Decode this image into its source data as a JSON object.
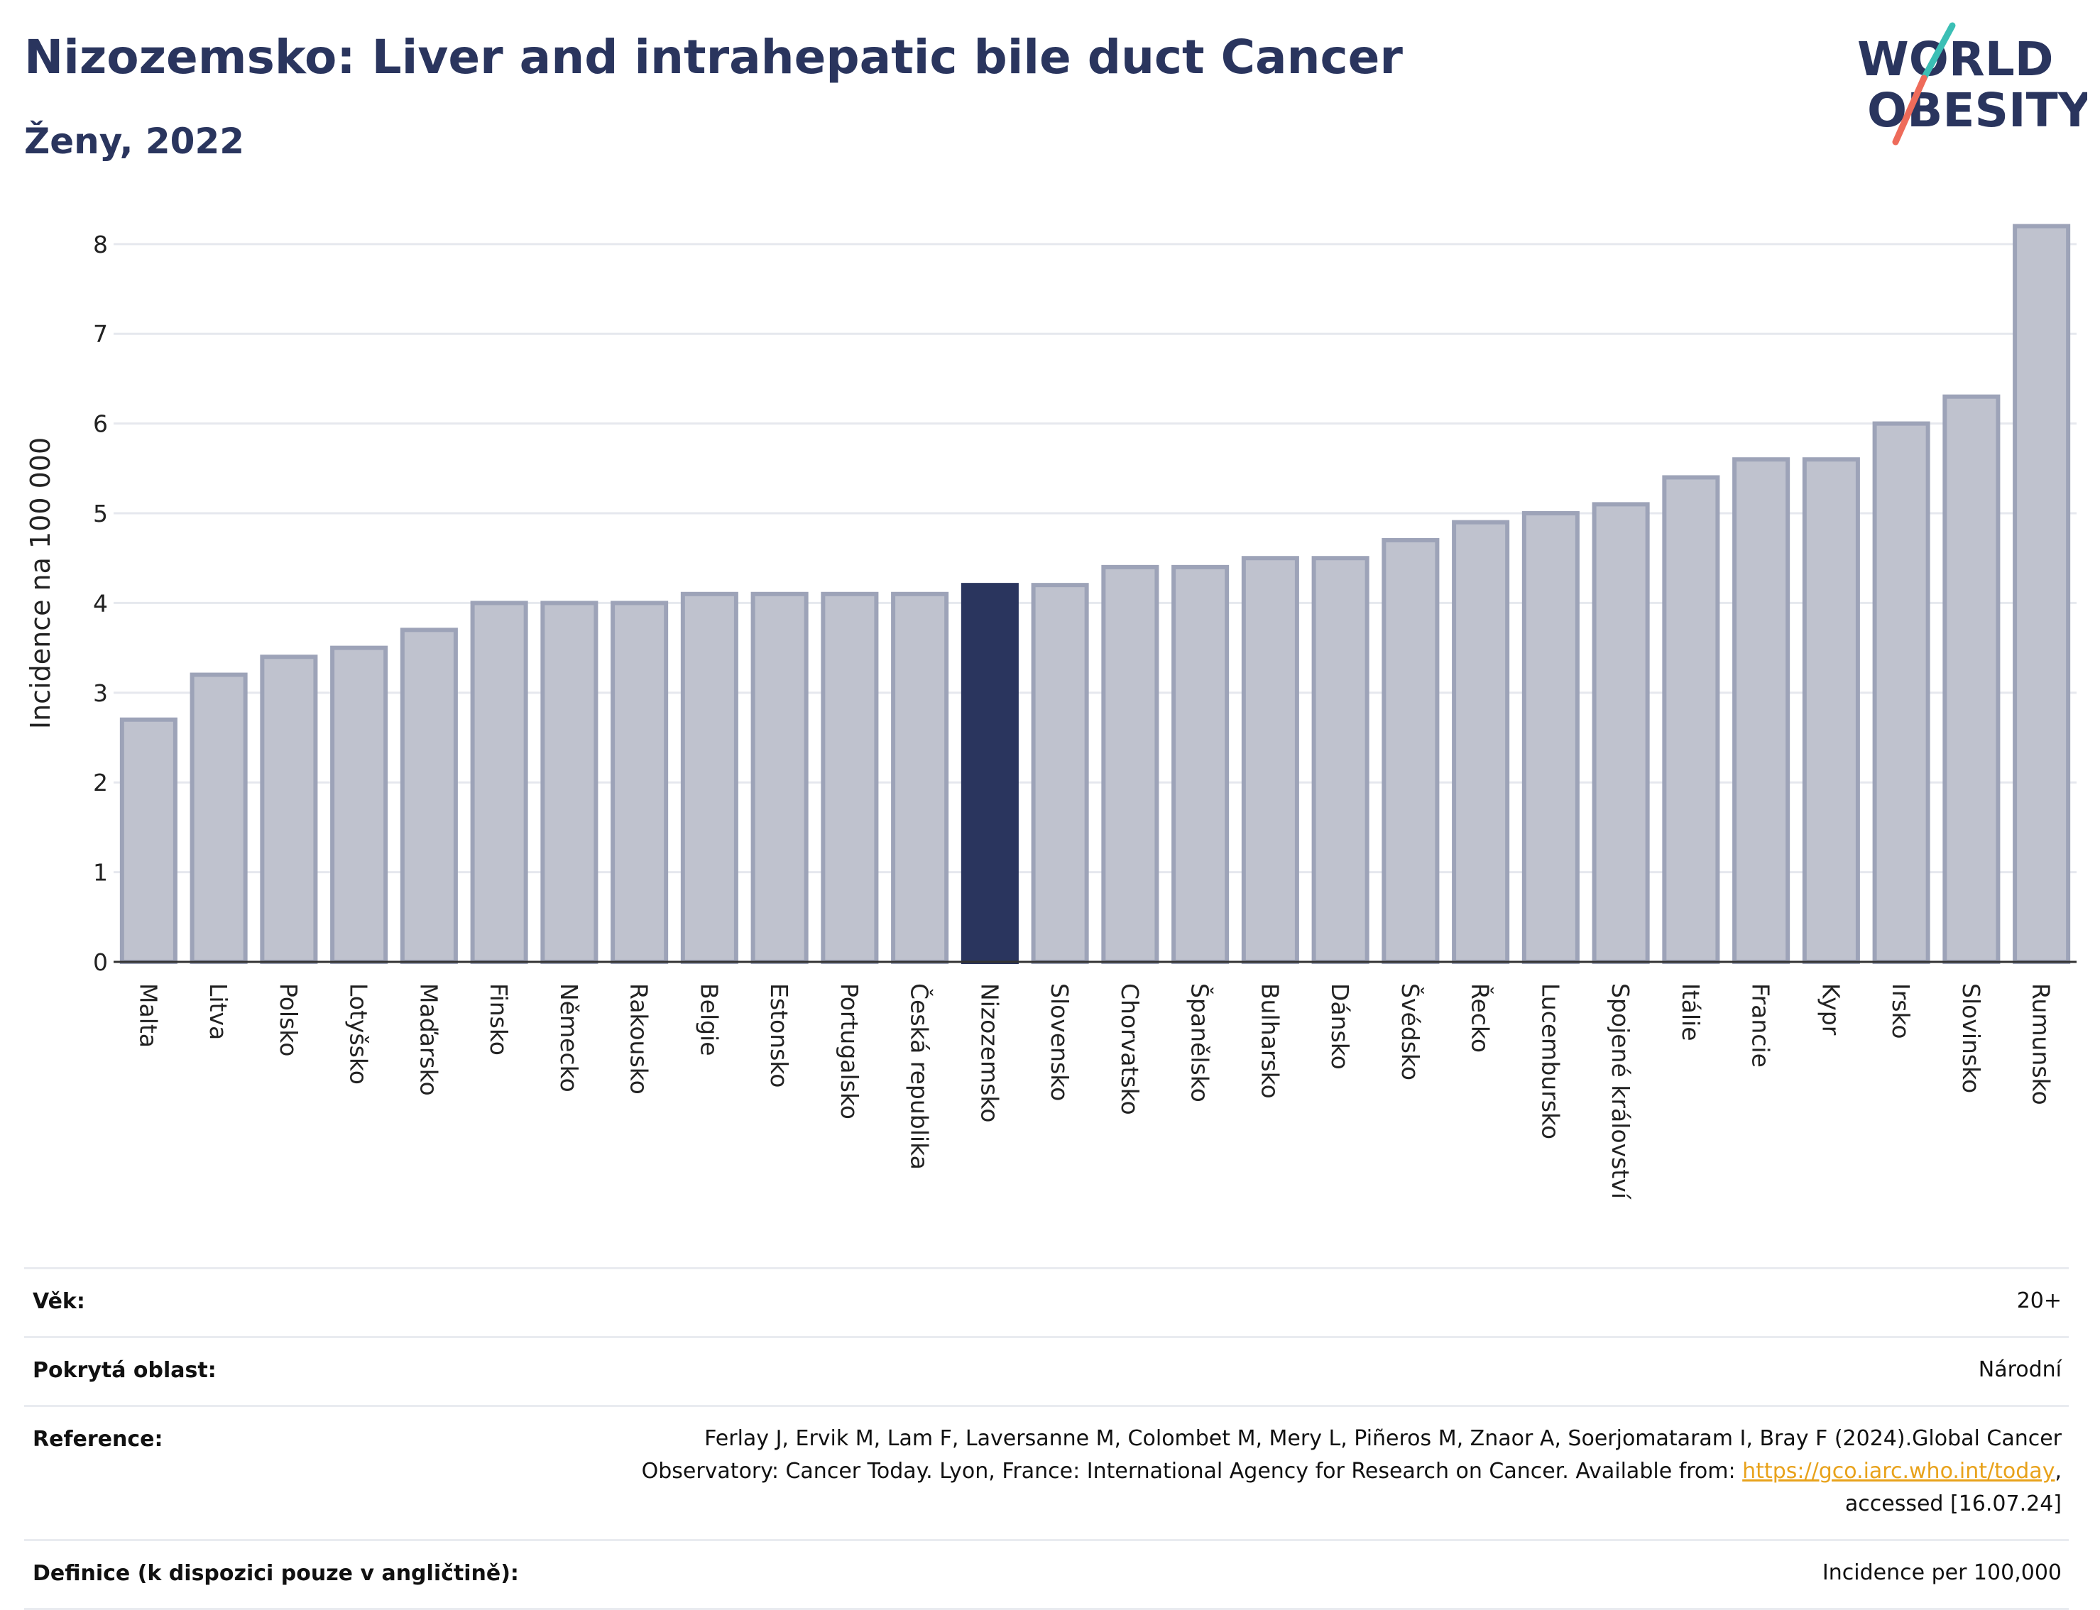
{
  "header": {
    "title": "Nizozemsko: Liver and intrahepatic bile duct Cancer",
    "subtitle": "Ženy, 2022"
  },
  "logo": {
    "line1": "WORLD",
    "line2": "OBESITY"
  },
  "colors": {
    "highlight": "#2a355e",
    "bar_fill": "#bfc2ce",
    "bar_stroke": "#9da3b8",
    "link": "#e8a21b",
    "logo_teal": "#3bbfb5",
    "logo_coral": "#ee6b5a"
  },
  "chart_data": {
    "type": "bar",
    "ylabel": "Incidence na 100 000",
    "ylim": [
      0,
      8.6
    ],
    "yticks": [
      0,
      1,
      2,
      3,
      4,
      5,
      6,
      7,
      8
    ],
    "grid": true,
    "highlight_category": "Nizozemsko",
    "categories": [
      "Malta",
      "Litva",
      "Polsko",
      "Lotyšsko",
      "Maďarsko",
      "Finsko",
      "Německo",
      "Rakousko",
      "Belgie",
      "Estonsko",
      "Portugalsko",
      "Česká republika",
      "Nizozemsko",
      "Slovensko",
      "Chorvatsko",
      "Španělsko",
      "Bulharsko",
      "Dánsko",
      "Švédsko",
      "Řecko",
      "Lucembursko",
      "Spojené království",
      "Itálie",
      "Francie",
      "Kypr",
      "Irsko",
      "Slovinsko",
      "Rumunsko"
    ],
    "values": [
      2.7,
      3.2,
      3.4,
      3.5,
      3.7,
      4.0,
      4.0,
      4.0,
      4.1,
      4.1,
      4.1,
      4.1,
      4.2,
      4.2,
      4.4,
      4.4,
      4.5,
      4.5,
      4.7,
      4.9,
      5.0,
      5.1,
      5.4,
      5.6,
      5.6,
      6.0,
      6.3,
      8.2
    ]
  },
  "info": {
    "age_label": "Věk:",
    "age_value": "20+",
    "area_label": "Pokrytá oblast:",
    "area_value": "Národní",
    "reference_label": "Reference:",
    "reference_text_1": "Ferlay J, Ervik M, Lam F, Laversanne M, Colombet M, Mery L, Piñeros M, Znaor A, Soerjomataram I, Bray F (2024).Global Cancer",
    "reference_text_2": "Observatory: Cancer Today. Lyon, France: International Agency for Research on Cancer. Available from: ",
    "reference_link": "https://gco.iarc.who.int/today",
    "reference_text_3": ",",
    "reference_text_4": "accessed [16.07.24]",
    "definition_label": "Definice (k dispozici pouze v angličtině):",
    "definition_value": "Incidence per 100,000"
  }
}
